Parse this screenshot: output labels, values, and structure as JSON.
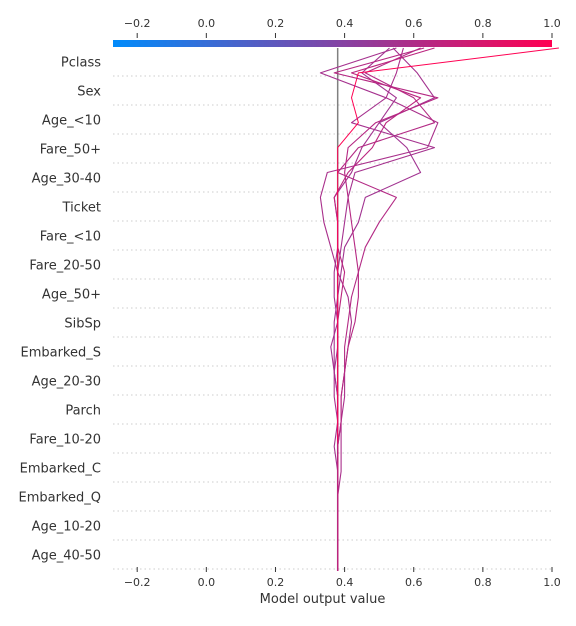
{
  "chart_data": {
    "type": "line",
    "subtype": "shap-decision-plot",
    "xlabel": "Model output value",
    "xlim": [
      -0.27,
      1.0
    ],
    "xticks": [
      -0.2,
      0.0,
      0.2,
      0.4,
      0.6,
      0.8,
      1.0
    ],
    "xtick_labels": [
      "−0.2",
      "0.0",
      "0.2",
      "0.4",
      "0.6",
      "0.8",
      "1.0"
    ],
    "base_value": 0.38,
    "features_top_to_bottom": [
      "Pclass",
      "Sex",
      "Age_<10",
      "Fare_50+",
      "Age_30-40",
      "Ticket",
      "Fare_<10",
      "Fare_20-50",
      "Age_50+",
      "SibSp",
      "Embarked_S",
      "Age_20-30",
      "Parch",
      "Fare_10-20",
      "Embarked_C",
      "Embarked_Q",
      "Age_10-20",
      "Age_40-50"
    ],
    "colorbar": {
      "min": -0.27,
      "max": 1.0,
      "colors": [
        "#008bfb",
        "#ff0052"
      ]
    },
    "grid": true,
    "series": [
      {
        "values": [
          0.38,
          0.38,
          0.38,
          0.38,
          0.38,
          0.37,
          0.38,
          0.38,
          0.37,
          0.36,
          0.38,
          0.37,
          0.37,
          0.38,
          0.38,
          0.37,
          0.42,
          0.45,
          0.5,
          0.66,
          0.61,
          0.54
        ]
      },
      {
        "values": [
          0.38,
          0.38,
          0.38,
          0.38,
          0.39,
          0.39,
          0.39,
          0.4,
          0.4,
          0.41,
          0.42,
          0.41,
          0.38,
          0.36,
          0.34,
          0.33,
          0.35,
          0.64,
          0.67,
          0.52,
          0.55,
          0.57
        ]
      },
      {
        "values": [
          0.38,
          0.38,
          0.38,
          0.38,
          0.38,
          0.38,
          0.39,
          0.39,
          0.4,
          0.4,
          0.41,
          0.42,
          0.44,
          0.46,
          0.5,
          0.55,
          0.38,
          0.44,
          0.66,
          0.6,
          0.46,
          0.62
        ]
      },
      {
        "values": [
          0.38,
          0.38,
          0.38,
          0.38,
          0.38,
          0.38,
          0.38,
          0.38,
          0.37,
          0.38,
          0.38,
          0.38,
          0.39,
          0.4,
          0.44,
          0.46,
          0.62,
          0.58,
          0.5,
          0.55,
          0.45,
          0.53
        ]
      },
      {
        "values": [
          0.38,
          0.38,
          0.38,
          0.38,
          0.38,
          0.38,
          0.38,
          0.38,
          0.38,
          0.38,
          0.38,
          0.39,
          0.4,
          0.38,
          0.38,
          0.37,
          0.41,
          0.48,
          0.52,
          0.62,
          0.42,
          0.66
        ]
      },
      {
        "values": [
          0.38,
          0.38,
          0.38,
          0.38,
          0.38,
          0.38,
          0.38,
          0.37,
          0.37,
          0.37,
          0.37,
          0.38,
          0.38,
          0.39,
          0.4,
          0.41,
          0.43,
          0.66,
          0.42,
          0.52,
          0.33,
          0.55
        ]
      },
      {
        "values": [
          0.38,
          0.38,
          0.38,
          0.38,
          0.38,
          0.38,
          0.38,
          0.38,
          0.38,
          0.38,
          0.38,
          0.38,
          0.38,
          0.38,
          0.38,
          0.38,
          0.38,
          0.38,
          0.44,
          0.42,
          0.44,
          1.02
        ]
      },
      {
        "values": [
          0.38,
          0.38,
          0.38,
          0.38,
          0.38,
          0.38,
          0.39,
          0.39,
          0.4,
          0.41,
          0.43,
          0.44,
          0.44,
          0.43,
          0.42,
          0.41,
          0.4,
          0.41,
          0.49,
          0.67,
          0.37,
          0.63
        ]
      }
    ]
  }
}
